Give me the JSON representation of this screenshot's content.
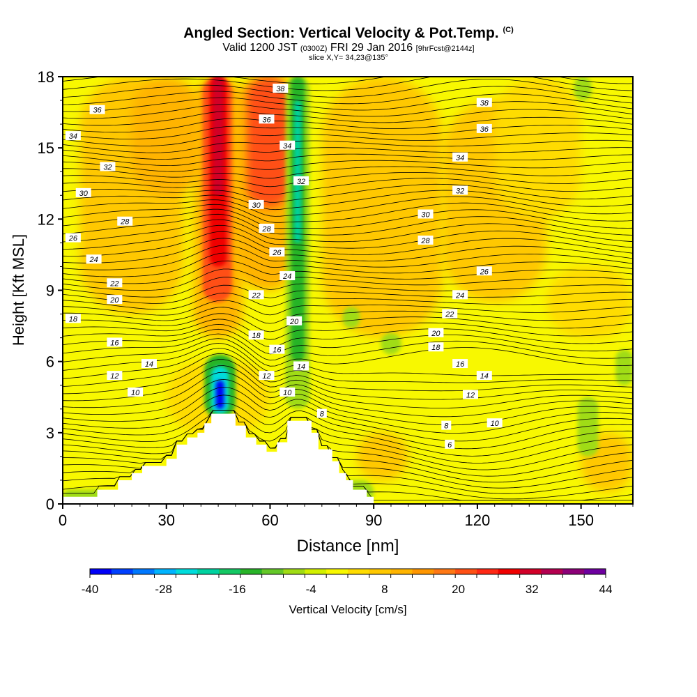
{
  "header": {
    "title": "Angled Section: Vertical Velocity & Pot.Temp.",
    "title_unit": "(C)",
    "valid_prefix": "Valid 1200 JST",
    "valid_utc": "(0300Z)",
    "valid_date": "FRI 29 Jan 2016",
    "forecast": "[9hrFcst@2144z]",
    "slice": "slice X,Y= 34,23@135°"
  },
  "colors": {
    "background_field": "#f0f000",
    "terrain": "#ffffff",
    "contour": "#000000"
  },
  "chart_data": {
    "type": "heatmap",
    "title": "Angled Section: Vertical Velocity & Pot.Temp.",
    "xlabel": "Distance [nm]",
    "ylabel": "Height [Kft MSL]",
    "xlim": [
      0,
      165
    ],
    "ylim": [
      0,
      18
    ],
    "xticks": [
      0,
      30,
      60,
      90,
      120,
      150
    ],
    "yticks": [
      0,
      3,
      6,
      9,
      12,
      15,
      18
    ],
    "grid": false,
    "fill_variable": "Vertical Velocity [cm/s]",
    "contour_variable": "Potential Temperature (C)",
    "colorbar": {
      "label": "Vertical Velocity [cm/s]",
      "min": -40,
      "max": 44,
      "step": 4,
      "tick_labels": [
        -40,
        -28,
        -16,
        -4,
        8,
        20,
        32,
        44
      ],
      "colors": [
        "#0000f8",
        "#0040ff",
        "#0078ff",
        "#00b4ff",
        "#00dcdc",
        "#00d2a0",
        "#14c864",
        "#28b428",
        "#64c828",
        "#a0dc14",
        "#d2f000",
        "#f8f800",
        "#ffdc00",
        "#ffc800",
        "#ffb400",
        "#ff9600",
        "#ff7814",
        "#ff5014",
        "#ff2814",
        "#f00000",
        "#d20028",
        "#b40050",
        "#8c0078",
        "#6e00a0"
      ]
    },
    "terrain_profile": [
      {
        "x": 0,
        "h": 0.3
      },
      {
        "x": 10,
        "h": 0.6
      },
      {
        "x": 16,
        "h": 1.0
      },
      {
        "x": 20,
        "h": 1.3
      },
      {
        "x": 23,
        "h": 1.6
      },
      {
        "x": 30,
        "h": 1.9
      },
      {
        "x": 33,
        "h": 2.5
      },
      {
        "x": 36,
        "h": 2.8
      },
      {
        "x": 39,
        "h": 3.0
      },
      {
        "x": 41,
        "h": 3.4
      },
      {
        "x": 43,
        "h": 3.8
      },
      {
        "x": 50,
        "h": 3.3
      },
      {
        "x": 53,
        "h": 2.8
      },
      {
        "x": 56,
        "h": 2.5
      },
      {
        "x": 59,
        "h": 2.2
      },
      {
        "x": 62,
        "h": 2.6
      },
      {
        "x": 65,
        "h": 3.5
      },
      {
        "x": 72,
        "h": 3.0
      },
      {
        "x": 74,
        "h": 2.3
      },
      {
        "x": 78,
        "h": 1.8
      },
      {
        "x": 80,
        "h": 1.3
      },
      {
        "x": 82,
        "h": 1.0
      },
      {
        "x": 84,
        "h": 0.6
      },
      {
        "x": 88,
        "h": 0.3
      },
      {
        "x": 90,
        "h": 0.0
      }
    ],
    "updraft_max_region": {
      "x": [
        43,
        48
      ],
      "y": [
        10,
        18
      ],
      "value_cm_s": 44
    },
    "updraft_upper": {
      "x": [
        53,
        67
      ],
      "y": [
        12.5,
        18
      ],
      "value_cm_s": 32
    },
    "downdraft_core": {
      "x": [
        44,
        47
      ],
      "y": [
        3.8,
        6
      ],
      "value_cm_s": -40
    },
    "downdraft_band": {
      "x": [
        66,
        71
      ],
      "y": [
        3,
        18
      ],
      "value_cm_s": -10
    },
    "contour_labels": [
      {
        "text": "38",
        "x": 63,
        "y": 17.5
      },
      {
        "text": "36",
        "x": 10,
        "y": 16.6
      },
      {
        "text": "36",
        "x": 59,
        "y": 16.2
      },
      {
        "text": "34",
        "x": 3,
        "y": 15.5
      },
      {
        "text": "34",
        "x": 65,
        "y": 15.1
      },
      {
        "text": "32",
        "x": 13,
        "y": 14.2
      },
      {
        "text": "32",
        "x": 69,
        "y": 13.6
      },
      {
        "text": "30",
        "x": 6,
        "y": 13.1
      },
      {
        "text": "30",
        "x": 56,
        "y": 12.6
      },
      {
        "text": "28",
        "x": 18,
        "y": 11.9
      },
      {
        "text": "28",
        "x": 59,
        "y": 11.6
      },
      {
        "text": "26",
        "x": 3,
        "y": 11.2
      },
      {
        "text": "26",
        "x": 62,
        "y": 10.6
      },
      {
        "text": "24",
        "x": 9,
        "y": 10.3
      },
      {
        "text": "24",
        "x": 65,
        "y": 9.6
      },
      {
        "text": "22",
        "x": 15,
        "y": 9.3
      },
      {
        "text": "22",
        "x": 56,
        "y": 8.8
      },
      {
        "text": "20",
        "x": 15,
        "y": 8.6
      },
      {
        "text": "20",
        "x": 67,
        "y": 7.7
      },
      {
        "text": "18",
        "x": 3,
        "y": 7.8
      },
      {
        "text": "18",
        "x": 56,
        "y": 7.1
      },
      {
        "text": "16",
        "x": 15,
        "y": 6.8
      },
      {
        "text": "16",
        "x": 62,
        "y": 6.5
      },
      {
        "text": "14",
        "x": 25,
        "y": 5.9
      },
      {
        "text": "14",
        "x": 69,
        "y": 5.8
      },
      {
        "text": "12",
        "x": 15,
        "y": 5.4
      },
      {
        "text": "12",
        "x": 59,
        "y": 5.4
      },
      {
        "text": "10",
        "x": 21,
        "y": 4.7
      },
      {
        "text": "10",
        "x": 65,
        "y": 4.7
      },
      {
        "text": "8",
        "x": 75,
        "y": 3.8
      },
      {
        "text": "38",
        "x": 122,
        "y": 16.9
      },
      {
        "text": "36",
        "x": 122,
        "y": 15.8
      },
      {
        "text": "34",
        "x": 115,
        "y": 14.6
      },
      {
        "text": "32",
        "x": 115,
        "y": 13.2
      },
      {
        "text": "30",
        "x": 105,
        "y": 12.2
      },
      {
        "text": "28",
        "x": 105,
        "y": 11.1
      },
      {
        "text": "26",
        "x": 122,
        "y": 9.8
      },
      {
        "text": "24",
        "x": 115,
        "y": 8.8
      },
      {
        "text": "22",
        "x": 112,
        "y": 8.0
      },
      {
        "text": "20",
        "x": 108,
        "y": 7.2
      },
      {
        "text": "18",
        "x": 108,
        "y": 6.6
      },
      {
        "text": "16",
        "x": 115,
        "y": 5.9
      },
      {
        "text": "14",
        "x": 122,
        "y": 5.4
      },
      {
        "text": "12",
        "x": 118,
        "y": 4.6
      },
      {
        "text": "10",
        "x": 125,
        "y": 3.4
      },
      {
        "text": "8",
        "x": 111,
        "y": 3.3
      },
      {
        "text": "6",
        "x": 112,
        "y": 2.5
      }
    ]
  }
}
